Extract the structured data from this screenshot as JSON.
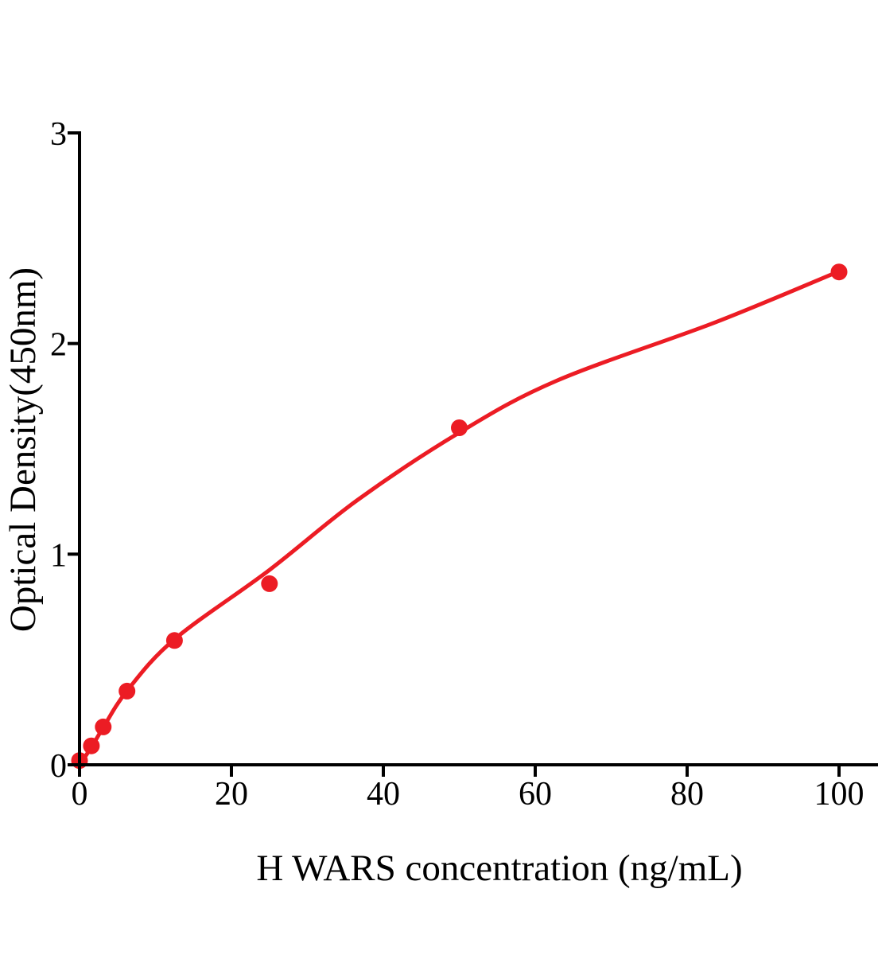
{
  "chart_data": {
    "type": "scatter",
    "title": "",
    "xlabel": "H WARS concentration (ng/mL)",
    "ylabel": "Optical Density(450nm)",
    "xlim": [
      0,
      105
    ],
    "ylim": [
      0,
      3
    ],
    "x_ticks": [
      "0",
      "20",
      "40",
      "60",
      "80",
      "100"
    ],
    "x_tick_values": [
      0,
      20,
      40,
      60,
      80,
      100
    ],
    "y_ticks": [
      "0",
      "1",
      "2",
      "3"
    ],
    "y_tick_values": [
      0,
      1,
      2,
      3
    ],
    "grid": false,
    "legend": false,
    "axis_color": "#000000",
    "accent_color": "#ec1c24",
    "series": [
      {
        "name": "standard-points",
        "type": "scatter",
        "color": "#ec1c24",
        "marker": "circle",
        "marker_radius": 10.5,
        "points": [
          [
            0,
            0.02
          ],
          [
            1.5625,
            0.09
          ],
          [
            3.125,
            0.18
          ],
          [
            6.25,
            0.35
          ],
          [
            12.5,
            0.59
          ],
          [
            25,
            0.86
          ],
          [
            50,
            1.6
          ],
          [
            100,
            2.34
          ]
        ]
      },
      {
        "name": "fitted-curve",
        "type": "line",
        "color": "#ec1c24",
        "stroke_width": 5,
        "points": [
          [
            0,
            0.0
          ],
          [
            1.5625,
            0.083
          ],
          [
            3.125,
            0.177
          ],
          [
            6.25,
            0.351
          ],
          [
            12.5,
            0.596
          ],
          [
            25,
            0.925
          ],
          [
            36.6,
            1.257
          ],
          [
            50,
            1.577
          ],
          [
            62.8,
            1.823
          ],
          [
            83.8,
            2.102
          ],
          [
            100,
            2.343
          ]
        ]
      }
    ]
  }
}
